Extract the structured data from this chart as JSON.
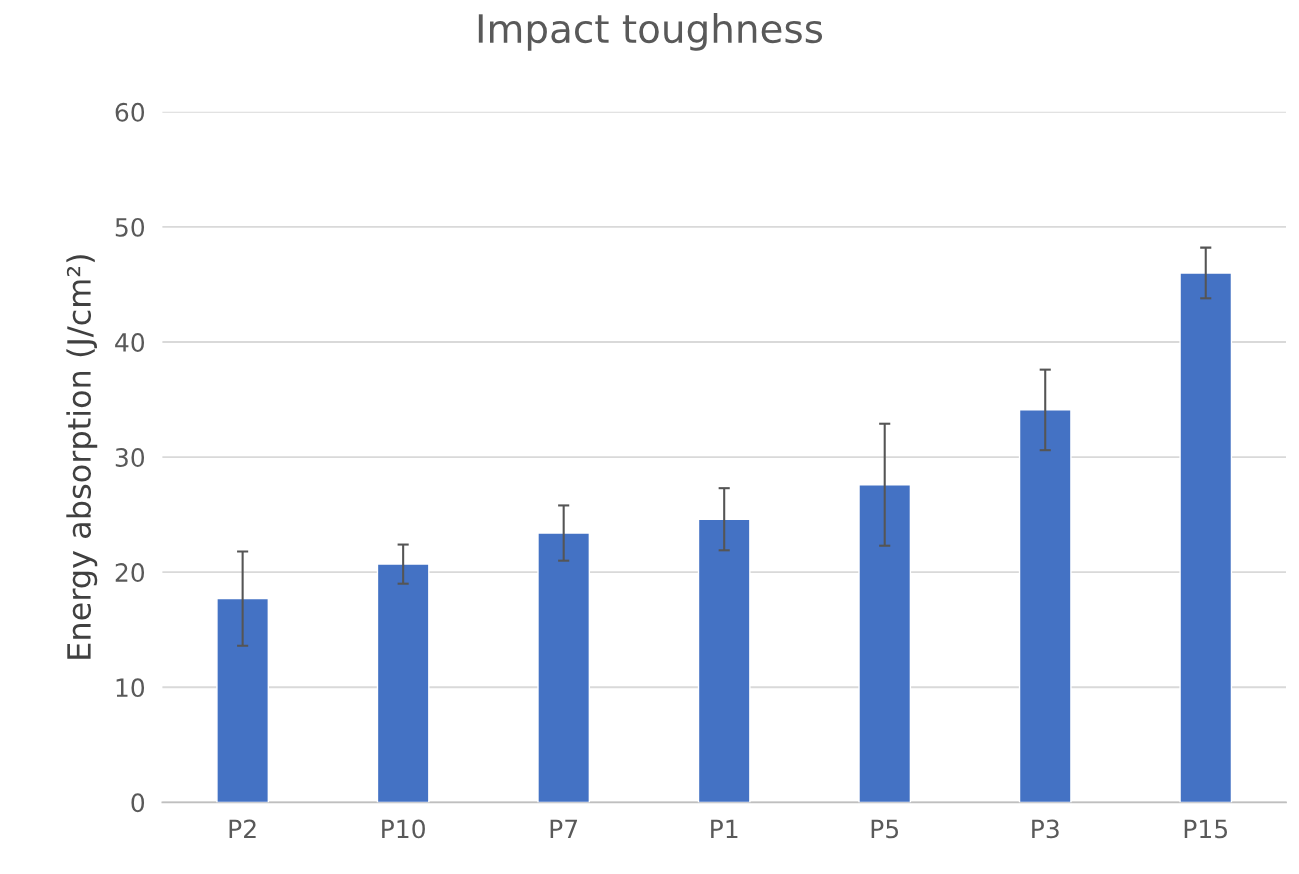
{
  "chart_data": {
    "type": "bar",
    "title": "Impact toughness",
    "ylabel": "Energy absorption (J/cm²)",
    "categories": [
      "P2",
      "P10",
      "P7",
      "P1",
      "P5",
      "P3",
      "P15"
    ],
    "values": [
      17.7,
      20.7,
      23.4,
      24.6,
      27.6,
      34.1,
      46.0
    ],
    "errors": [
      4.1,
      1.7,
      2.4,
      2.7,
      5.3,
      3.5,
      2.2
    ],
    "color": "#4472c4",
    "ylim": [
      0,
      60
    ],
    "yticks": [
      0,
      10,
      20,
      30,
      40,
      50,
      60
    ],
    "grid": "y"
  }
}
